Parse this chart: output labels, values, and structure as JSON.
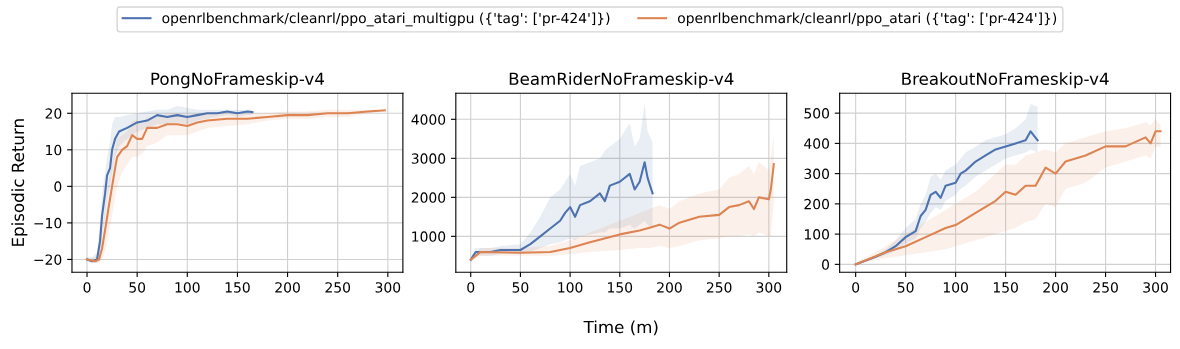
{
  "chart_data": [
    {
      "type": "line",
      "title": "PongNoFrameskip-v4",
      "ylabel": "Episodic Return",
      "legend": "top",
      "grid": true,
      "xlim": [
        -15,
        315
      ],
      "xticks": [
        0,
        50,
        100,
        150,
        200,
        250,
        300
      ],
      "ylim": [
        -23.5,
        25.5
      ],
      "yticks": [
        {
          "value": -20,
          "label": "−20"
        },
        {
          "value": -10,
          "label": "−10"
        },
        0,
        10,
        20
      ],
      "series": [
        {
          "name": "openrlbenchmark/cleanrl/ppo_atari_multigpu ({'tag': ['pr-424']})",
          "color": "#4c72b0",
          "x": [
            0,
            5,
            10,
            13,
            15,
            18,
            20,
            23,
            25,
            28,
            32,
            40,
            50,
            60,
            70,
            80,
            90,
            100,
            110,
            120,
            130,
            140,
            150,
            160,
            165
          ],
          "values": [
            -20,
            -20.5,
            -20,
            -15,
            -8,
            -2,
            3,
            5,
            10,
            13,
            15,
            16,
            17.5,
            18,
            19.5,
            19,
            19.5,
            19,
            19.5,
            20,
            20,
            20.5,
            20,
            20.5,
            20.3
          ],
          "lower": [
            -20.5,
            -21,
            -21,
            -19,
            -14,
            -8,
            -3,
            0,
            4,
            8,
            11,
            13,
            15,
            16,
            17,
            17,
            17.5,
            17,
            18,
            18.5,
            19,
            19.5,
            19,
            19.5,
            19.5
          ],
          "upper": [
            -19.5,
            -19.5,
            -18,
            -10,
            -2,
            4,
            8,
            12,
            17,
            19,
            19,
            19.5,
            20,
            20.5,
            21,
            21,
            22,
            21.5,
            21,
            21,
            21,
            21,
            21,
            21,
            21
          ]
        },
        {
          "name": "openrlbenchmark/cleanrl/ppo_atari ({'tag': ['pr-424']})",
          "color": "#dd8452",
          "x": [
            0,
            8,
            12,
            15,
            18,
            22,
            25,
            28,
            30,
            35,
            40,
            45,
            50,
            55,
            60,
            70,
            80,
            90,
            100,
            110,
            120,
            140,
            160,
            180,
            200,
            220,
            240,
            260,
            280,
            297
          ],
          "values": [
            -20,
            -20.5,
            -20,
            -17,
            -12,
            -5,
            0,
            5,
            8,
            10,
            11,
            14,
            13,
            13,
            16,
            16,
            17,
            17,
            16.5,
            17.5,
            18,
            18.5,
            18.5,
            19,
            19.5,
            19.5,
            20,
            20,
            20.5,
            20.8
          ],
          "lower": [
            -20.5,
            -21,
            -21,
            -20,
            -18,
            -13,
            -8,
            -3,
            0,
            4,
            6,
            8,
            8,
            9,
            11,
            12,
            14,
            14,
            14,
            15,
            16,
            16.5,
            17,
            18,
            18.5,
            18.5,
            19,
            19,
            20,
            20.5
          ],
          "upper": [
            -19.5,
            -19.5,
            -18,
            -13,
            -6,
            2,
            6,
            10,
            13,
            14,
            15,
            18,
            18,
            17,
            19,
            19,
            20,
            20,
            19.5,
            20,
            20,
            20,
            20,
            20,
            20.5,
            20.5,
            21,
            21,
            21,
            21
          ]
        }
      ]
    },
    {
      "type": "line",
      "title": "BeamRiderNoFrameskip-v4",
      "xlabel": "Time (m)",
      "grid": true,
      "xlim": [
        -15,
        318
      ],
      "xticks": [
        0,
        50,
        100,
        150,
        200,
        250,
        300
      ],
      "ylim": [
        80,
        4670
      ],
      "yticks": [
        1000,
        2000,
        3000,
        4000
      ],
      "series": [
        {
          "name": "openrlbenchmark/cleanrl/ppo_atari_multigpu ({'tag': ['pr-424']})",
          "color": "#4c72b0",
          "x": [
            0,
            5,
            20,
            30,
            50,
            60,
            70,
            80,
            90,
            95,
            100,
            105,
            110,
            120,
            130,
            135,
            140,
            150,
            160,
            165,
            170,
            175,
            178,
            183
          ],
          "values": [
            400,
            600,
            600,
            650,
            650,
            800,
            1000,
            1200,
            1400,
            1600,
            1750,
            1500,
            1800,
            1900,
            2100,
            1900,
            2300,
            2400,
            2600,
            2200,
            2400,
            2900,
            2500,
            2100
          ],
          "lower": [
            350,
            500,
            500,
            550,
            550,
            600,
            700,
            800,
            850,
            900,
            950,
            900,
            1000,
            1050,
            1100,
            1100,
            1200,
            1200,
            1300,
            1200,
            1300,
            1400,
            1300,
            1200
          ],
          "upper": [
            450,
            700,
            700,
            750,
            800,
            1100,
            1500,
            2000,
            2200,
            2400,
            2600,
            2300,
            2800,
            2900,
            3000,
            3200,
            3300,
            3500,
            3900,
            3300,
            3500,
            4400,
            3700,
            3400
          ]
        },
        {
          "name": "openrlbenchmark/cleanrl/ppo_atari ({'tag': ['pr-424']})",
          "color": "#dd8452",
          "x": [
            0,
            10,
            50,
            80,
            100,
            120,
            150,
            170,
            180,
            190,
            200,
            210,
            230,
            250,
            260,
            270,
            280,
            285,
            290,
            300,
            302,
            305
          ],
          "values": [
            400,
            600,
            580,
            600,
            700,
            850,
            1050,
            1150,
            1220,
            1300,
            1200,
            1350,
            1500,
            1550,
            1750,
            1800,
            1900,
            1700,
            2000,
            1950,
            2200,
            2850
          ],
          "lower": [
            350,
            500,
            500,
            500,
            550,
            600,
            650,
            700,
            700,
            750,
            700,
            750,
            900,
            950,
            1000,
            1000,
            1050,
            1000,
            1100,
            1000,
            1000,
            1900
          ],
          "upper": [
            450,
            700,
            700,
            750,
            900,
            1100,
            1400,
            1600,
            1700,
            1800,
            1700,
            1900,
            2100,
            2200,
            2500,
            2600,
            2800,
            2600,
            2900,
            2700,
            3000,
            3600
          ]
        }
      ]
    },
    {
      "type": "line",
      "title": "BreakoutNoFrameskip-v4",
      "grid": true,
      "xlim": [
        -16,
        315
      ],
      "xticks": [
        0,
        50,
        100,
        150,
        200,
        250,
        300
      ],
      "ylim": [
        -26,
        566
      ],
      "yticks": [
        0,
        100,
        200,
        300,
        400,
        500
      ],
      "series": [
        {
          "name": "openrlbenchmark/cleanrl/ppo_atari_multigpu ({'tag': ['pr-424']})",
          "color": "#4c72b0",
          "x": [
            0,
            20,
            30,
            40,
            50,
            60,
            65,
            70,
            75,
            80,
            85,
            90,
            100,
            105,
            110,
            120,
            130,
            140,
            150,
            160,
            170,
            175,
            182
          ],
          "values": [
            0,
            25,
            40,
            60,
            90,
            110,
            160,
            180,
            230,
            240,
            220,
            260,
            270,
            300,
            310,
            340,
            360,
            380,
            390,
            400,
            410,
            440,
            410
          ],
          "lower": [
            0,
            20,
            30,
            45,
            70,
            85,
            120,
            140,
            170,
            190,
            180,
            210,
            230,
            250,
            260,
            290,
            310,
            330,
            350,
            360,
            370,
            380,
            370
          ],
          "upper": [
            5,
            30,
            50,
            80,
            120,
            150,
            200,
            230,
            290,
            300,
            280,
            310,
            330,
            350,
            370,
            390,
            410,
            420,
            430,
            450,
            480,
            530,
            520
          ]
        },
        {
          "name": "openrlbenchmark/cleanrl/ppo_atari ({'tag': ['pr-424']})",
          "color": "#dd8452",
          "x": [
            0,
            30,
            50,
            70,
            90,
            100,
            120,
            130,
            140,
            150,
            160,
            170,
            180,
            190,
            200,
            210,
            230,
            250,
            270,
            290,
            295,
            300,
            305
          ],
          "values": [
            0,
            40,
            60,
            90,
            120,
            130,
            170,
            190,
            210,
            240,
            230,
            260,
            260,
            320,
            300,
            340,
            360,
            390,
            390,
            420,
            400,
            440,
            440
          ],
          "lower": [
            0,
            20,
            30,
            40,
            50,
            60,
            80,
            90,
            100,
            110,
            120,
            140,
            150,
            200,
            190,
            250,
            270,
            320,
            340,
            360,
            350,
            390,
            390
          ],
          "upper": [
            5,
            60,
            100,
            140,
            180,
            200,
            240,
            270,
            300,
            330,
            330,
            360,
            370,
            380,
            370,
            400,
            420,
            440,
            450,
            470,
            460,
            480,
            460
          ]
        }
      ]
    }
  ]
}
